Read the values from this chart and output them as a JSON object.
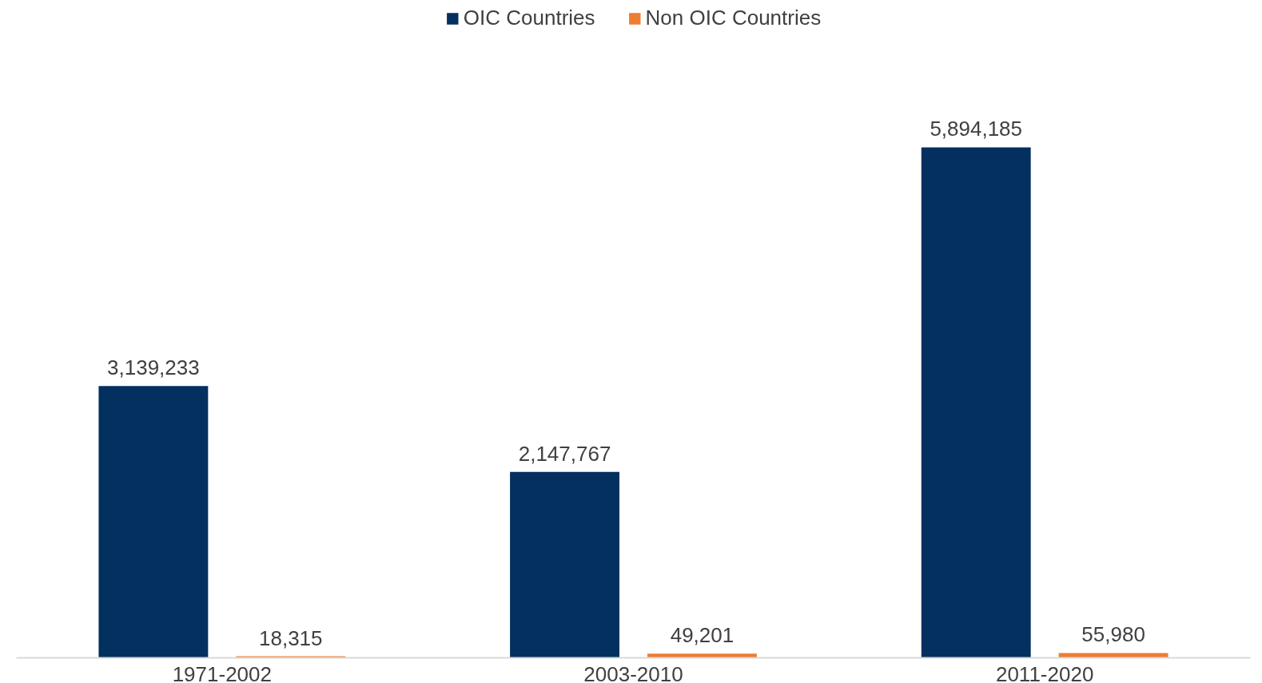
{
  "chart_data": {
    "type": "bar",
    "categories": [
      "1971-2002",
      "2003-2010",
      "2011-2020"
    ],
    "series": [
      {
        "name": "OIC Countries",
        "color": "#03305e",
        "values": [
          3139233,
          2147767,
          5894185
        ],
        "value_labels": [
          "3,139,233",
          "2,147,767",
          "5,894,185"
        ]
      },
      {
        "name": "Non OIC Countries",
        "color": "#ed7d31",
        "values": [
          18315,
          49201,
          55980
        ],
        "value_labels": [
          "18,315",
          "49,201",
          "55,980"
        ]
      }
    ],
    "legend": "top",
    "grid": false,
    "tick_labels": "x"
  }
}
